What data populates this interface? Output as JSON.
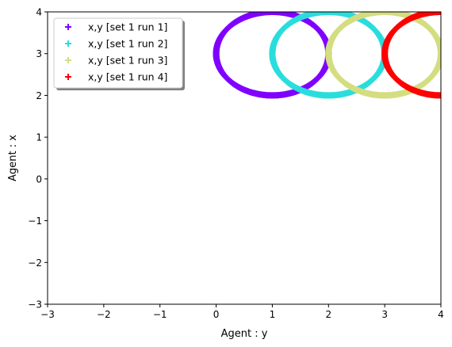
{
  "chart_data": {
    "type": "scatter",
    "title": "",
    "xlabel": "Agent : y",
    "ylabel": "Agent : x",
    "xlim": [
      -3,
      4
    ],
    "ylim": [
      -3,
      4
    ],
    "xticks": [
      {
        "value": -3,
        "label": "−3"
      },
      {
        "value": -2,
        "label": "−2"
      },
      {
        "value": -1,
        "label": "−1"
      },
      {
        "value": 0,
        "label": "0"
      },
      {
        "value": 1,
        "label": "1"
      },
      {
        "value": 2,
        "label": "2"
      },
      {
        "value": 3,
        "label": "3"
      },
      {
        "value": 4,
        "label": "4"
      }
    ],
    "yticks": [
      {
        "value": -3,
        "label": "−3"
      },
      {
        "value": -2,
        "label": "−2"
      },
      {
        "value": -1,
        "label": "−1"
      },
      {
        "value": 0,
        "label": "0"
      },
      {
        "value": 1,
        "label": "1"
      },
      {
        "value": 2,
        "label": "2"
      },
      {
        "value": 3,
        "label": "3"
      },
      {
        "value": 4,
        "label": "4"
      }
    ],
    "grid": false,
    "legend_position": "top-left",
    "marker": "plus",
    "series": [
      {
        "name": "x,y [set 1 run 1]",
        "color": "#8000ff",
        "shape": "circle",
        "center": [
          1,
          3
        ],
        "radius": 1
      },
      {
        "name": "x,y [set 1 run 2]",
        "color": "#2adddd",
        "shape": "circle",
        "center": [
          2,
          3
        ],
        "radius": 1
      },
      {
        "name": "x,y [set 1 run 3]",
        "color": "#d4dd80",
        "shape": "circle",
        "center": [
          3,
          3
        ],
        "radius": 1
      },
      {
        "name": "x,y [set 1 run 4]",
        "color": "#ff0000",
        "shape": "circle",
        "center": [
          4,
          3
        ],
        "radius": 1
      }
    ]
  }
}
